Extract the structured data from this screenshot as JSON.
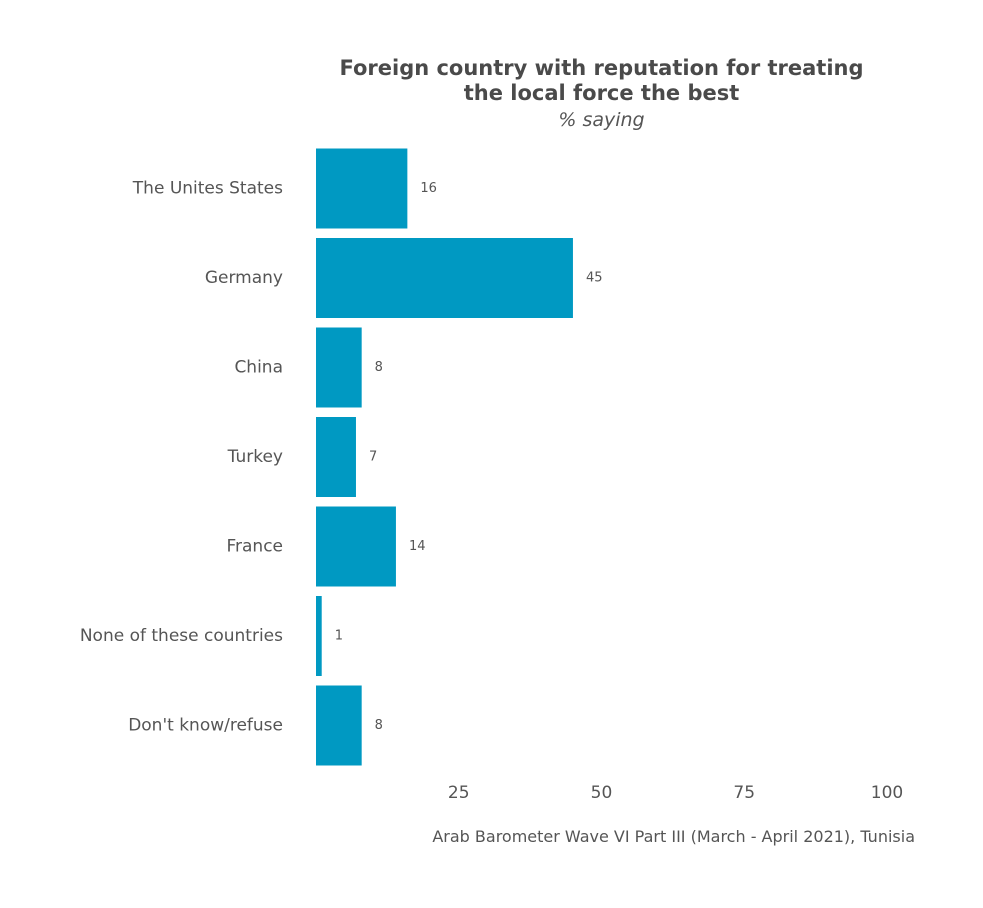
{
  "chart_data": {
    "type": "bar",
    "orientation": "horizontal",
    "title": "Foreign country with reputation for treating\nthe local force the best",
    "subtitle": "% saying",
    "categories": [
      "The Unites States",
      "Germany",
      "China",
      "Turkey",
      "France",
      "None of these countries",
      "Don't know/refuse"
    ],
    "values": [
      16,
      45,
      8,
      7,
      14,
      1,
      8
    ],
    "data_labels": [
      "16",
      "45",
      "8",
      "7",
      "14",
      "1",
      "8"
    ],
    "xlim": [
      0,
      100
    ],
    "x_ticks": [
      25,
      50,
      75,
      100
    ],
    "x_tick_labels": [
      "25",
      "50",
      "75",
      "100"
    ],
    "xlabel": "",
    "ylabel": "",
    "grid": false,
    "legend": "none",
    "bar_color": "#0099c2",
    "caption": "Arab Barometer Wave VI Part III (March - April 2021), Tunisia"
  }
}
